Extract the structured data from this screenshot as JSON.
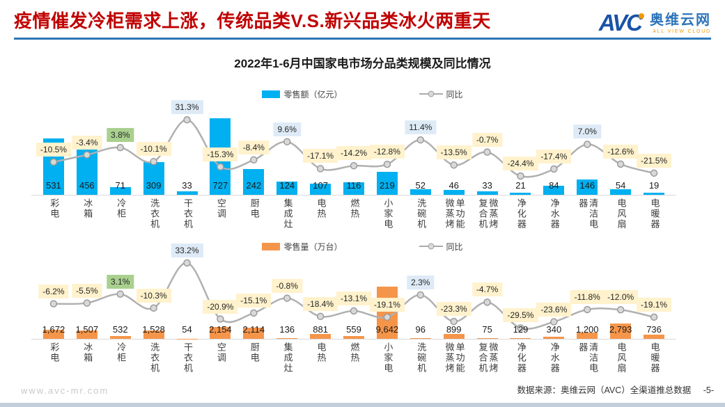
{
  "header": {
    "title": "疫情催发冷柜需求上涨，传统品类V.S.新兴品类冰火两重天",
    "logo": {
      "avc": "AVC",
      "cn": "奥维云网",
      "en": "ALL VIEW CLOUD"
    }
  },
  "chart_title": "2022年1-6月中国家电市场分品类规模及同比情况",
  "footer": {
    "site": "www.avc-mr.com",
    "source": "数据来源：奥维云网（AVC）全渠道推总数据",
    "page": "-5-"
  },
  "colors": {
    "title_red": "#C00000",
    "rule_blue": "#2E75B6",
    "bar_blue": "#00B0F0",
    "bar_orange": "#F5954A",
    "line_gray": "#B0B0B0",
    "marker_fill": "#D9D9D9",
    "marker_stroke": "#9B9B9B",
    "label_neg_bg": "#FFF2CC",
    "label_pos_bg": "#DEEBF7",
    "label_green_bg": "#A9D08E",
    "logo_blue": "#1A53A7",
    "logo_orange": "#F39800",
    "bottom_strip": "#C2CFDA"
  },
  "chart_data": [
    {
      "type": "bar",
      "title": "零售额（亿元）及同比",
      "legend": [
        "零售额（亿元）",
        "同比"
      ],
      "legend_position": "top",
      "grid": false,
      "categories": [
        "彩电",
        "冰箱",
        "冷柜",
        "洗衣机",
        "干衣机",
        "空调",
        "厨电",
        "集成灶",
        "电热",
        "燃热",
        "小家电",
        "洗碗机",
        "单功能微蒸烤",
        "微蒸烤复合机",
        "净化器",
        "净水器",
        "清洁电器",
        "电风扇",
        "电暖器"
      ],
      "series": [
        {
          "name": "零售额（亿元）",
          "type": "bar",
          "values": [
            531,
            456,
            71,
            309,
            33,
            727,
            242,
            124,
            107,
            116,
            219,
            52,
            46,
            33,
            21,
            84,
            146,
            54,
            19
          ]
        },
        {
          "name": "同比",
          "type": "line",
          "unit": "%",
          "values": [
            -10.5,
            -3.4,
            3.8,
            -10.1,
            31.3,
            -15.3,
            -8.4,
            9.6,
            -17.1,
            -14.2,
            -12.8,
            11.4,
            -13.5,
            -0.7,
            -24.4,
            -17.4,
            7.0,
            -12.6,
            -21.5
          ]
        }
      ],
      "value_labels": [
        "531",
        "456",
        "71",
        "309",
        "33",
        "727",
        "242",
        "124",
        "107",
        "116",
        "219",
        "52",
        "46",
        "33",
        "21",
        "84",
        "146",
        "54",
        "19"
      ],
      "pct_labels": [
        "-10.5%",
        "-3.4%",
        "3.8%",
        "-10.1%",
        "31.3%",
        "-15.3%",
        "-8.4%",
        "9.6%",
        "-17.1%",
        "-14.2%",
        "-12.8%",
        "11.4%",
        "-13.5%",
        "-0.7%",
        "-24.4%",
        "-17.4%",
        "7.0%",
        "-12.6%",
        "-21.5%"
      ],
      "pct_tones": [
        "neg",
        "neg",
        "green",
        "neg",
        "pos",
        "neg",
        "neg",
        "pos",
        "neg",
        "neg",
        "neg",
        "pos",
        "neg",
        "neg",
        "neg",
        "neg",
        "pos",
        "neg",
        "neg"
      ],
      "bar_ylim": [
        0,
        870
      ],
      "line_ylim": [
        -43,
        48
      ],
      "bar_color": "#00B0F0"
    },
    {
      "type": "bar",
      "title": "零售量（万台）及同比",
      "legend": [
        "零售量（万台）",
        "同比"
      ],
      "legend_position": "top",
      "grid": false,
      "categories": [
        "彩电",
        "冰箱",
        "冷柜",
        "洗衣机",
        "干衣机",
        "空调",
        "厨电",
        "集成灶",
        "电热",
        "燃热",
        "小家电",
        "洗碗机",
        "单功能微蒸烤",
        "微蒸烤复合机",
        "净化器",
        "净水器",
        "清洁电器",
        "电风扇",
        "电暖器"
      ],
      "series": [
        {
          "name": "零售量（万台）",
          "type": "bar",
          "values": [
            1672,
            1507,
            532,
            1528,
            54,
            2154,
            2114,
            136,
            881,
            559,
            9642,
            96,
            899,
            75,
            129,
            340,
            1200,
            2793,
            736
          ]
        },
        {
          "name": "同比",
          "type": "line",
          "unit": "%",
          "values": [
            -6.2,
            -5.5,
            3.1,
            -10.3,
            33.2,
            -20.9,
            -15.1,
            -0.8,
            -18.4,
            -13.1,
            -19.1,
            2.3,
            -23.3,
            -4.7,
            -29.5,
            -23.6,
            -11.8,
            -12.0,
            -19.1
          ]
        }
      ],
      "value_labels": [
        "1,672",
        "1,507",
        "532",
        "1,528",
        "54",
        "2,154",
        "2,114",
        "136",
        "881",
        "559",
        "9,642",
        "96",
        "899",
        "75",
        "129",
        "340",
        "1,200",
        "2,793",
        "736"
      ],
      "pct_labels": [
        "-6.2%",
        "-5.5%",
        "3.1%",
        "-10.3%",
        "33.2%",
        "-20.9%",
        "-15.1%",
        "-0.8%",
        "-18.4%",
        "-13.1%",
        "-19.1%",
        "2.3%",
        "-23.3%",
        "-4.7%",
        "-29.5%",
        "-23.6%",
        "-11.8%",
        "-12.0%",
        "-19.1%"
      ],
      "pct_tones": [
        "neg",
        "neg",
        "green",
        "neg",
        "pos",
        "neg",
        "neg",
        "neg",
        "neg",
        "neg",
        "neg",
        "pos",
        "neg",
        "neg",
        "neg",
        "neg",
        "neg",
        "neg",
        "neg"
      ],
      "bar_ylim": [
        0,
        15400
      ],
      "line_ylim": [
        -40,
        40.5
      ],
      "bar_color": "#F5954A"
    }
  ]
}
